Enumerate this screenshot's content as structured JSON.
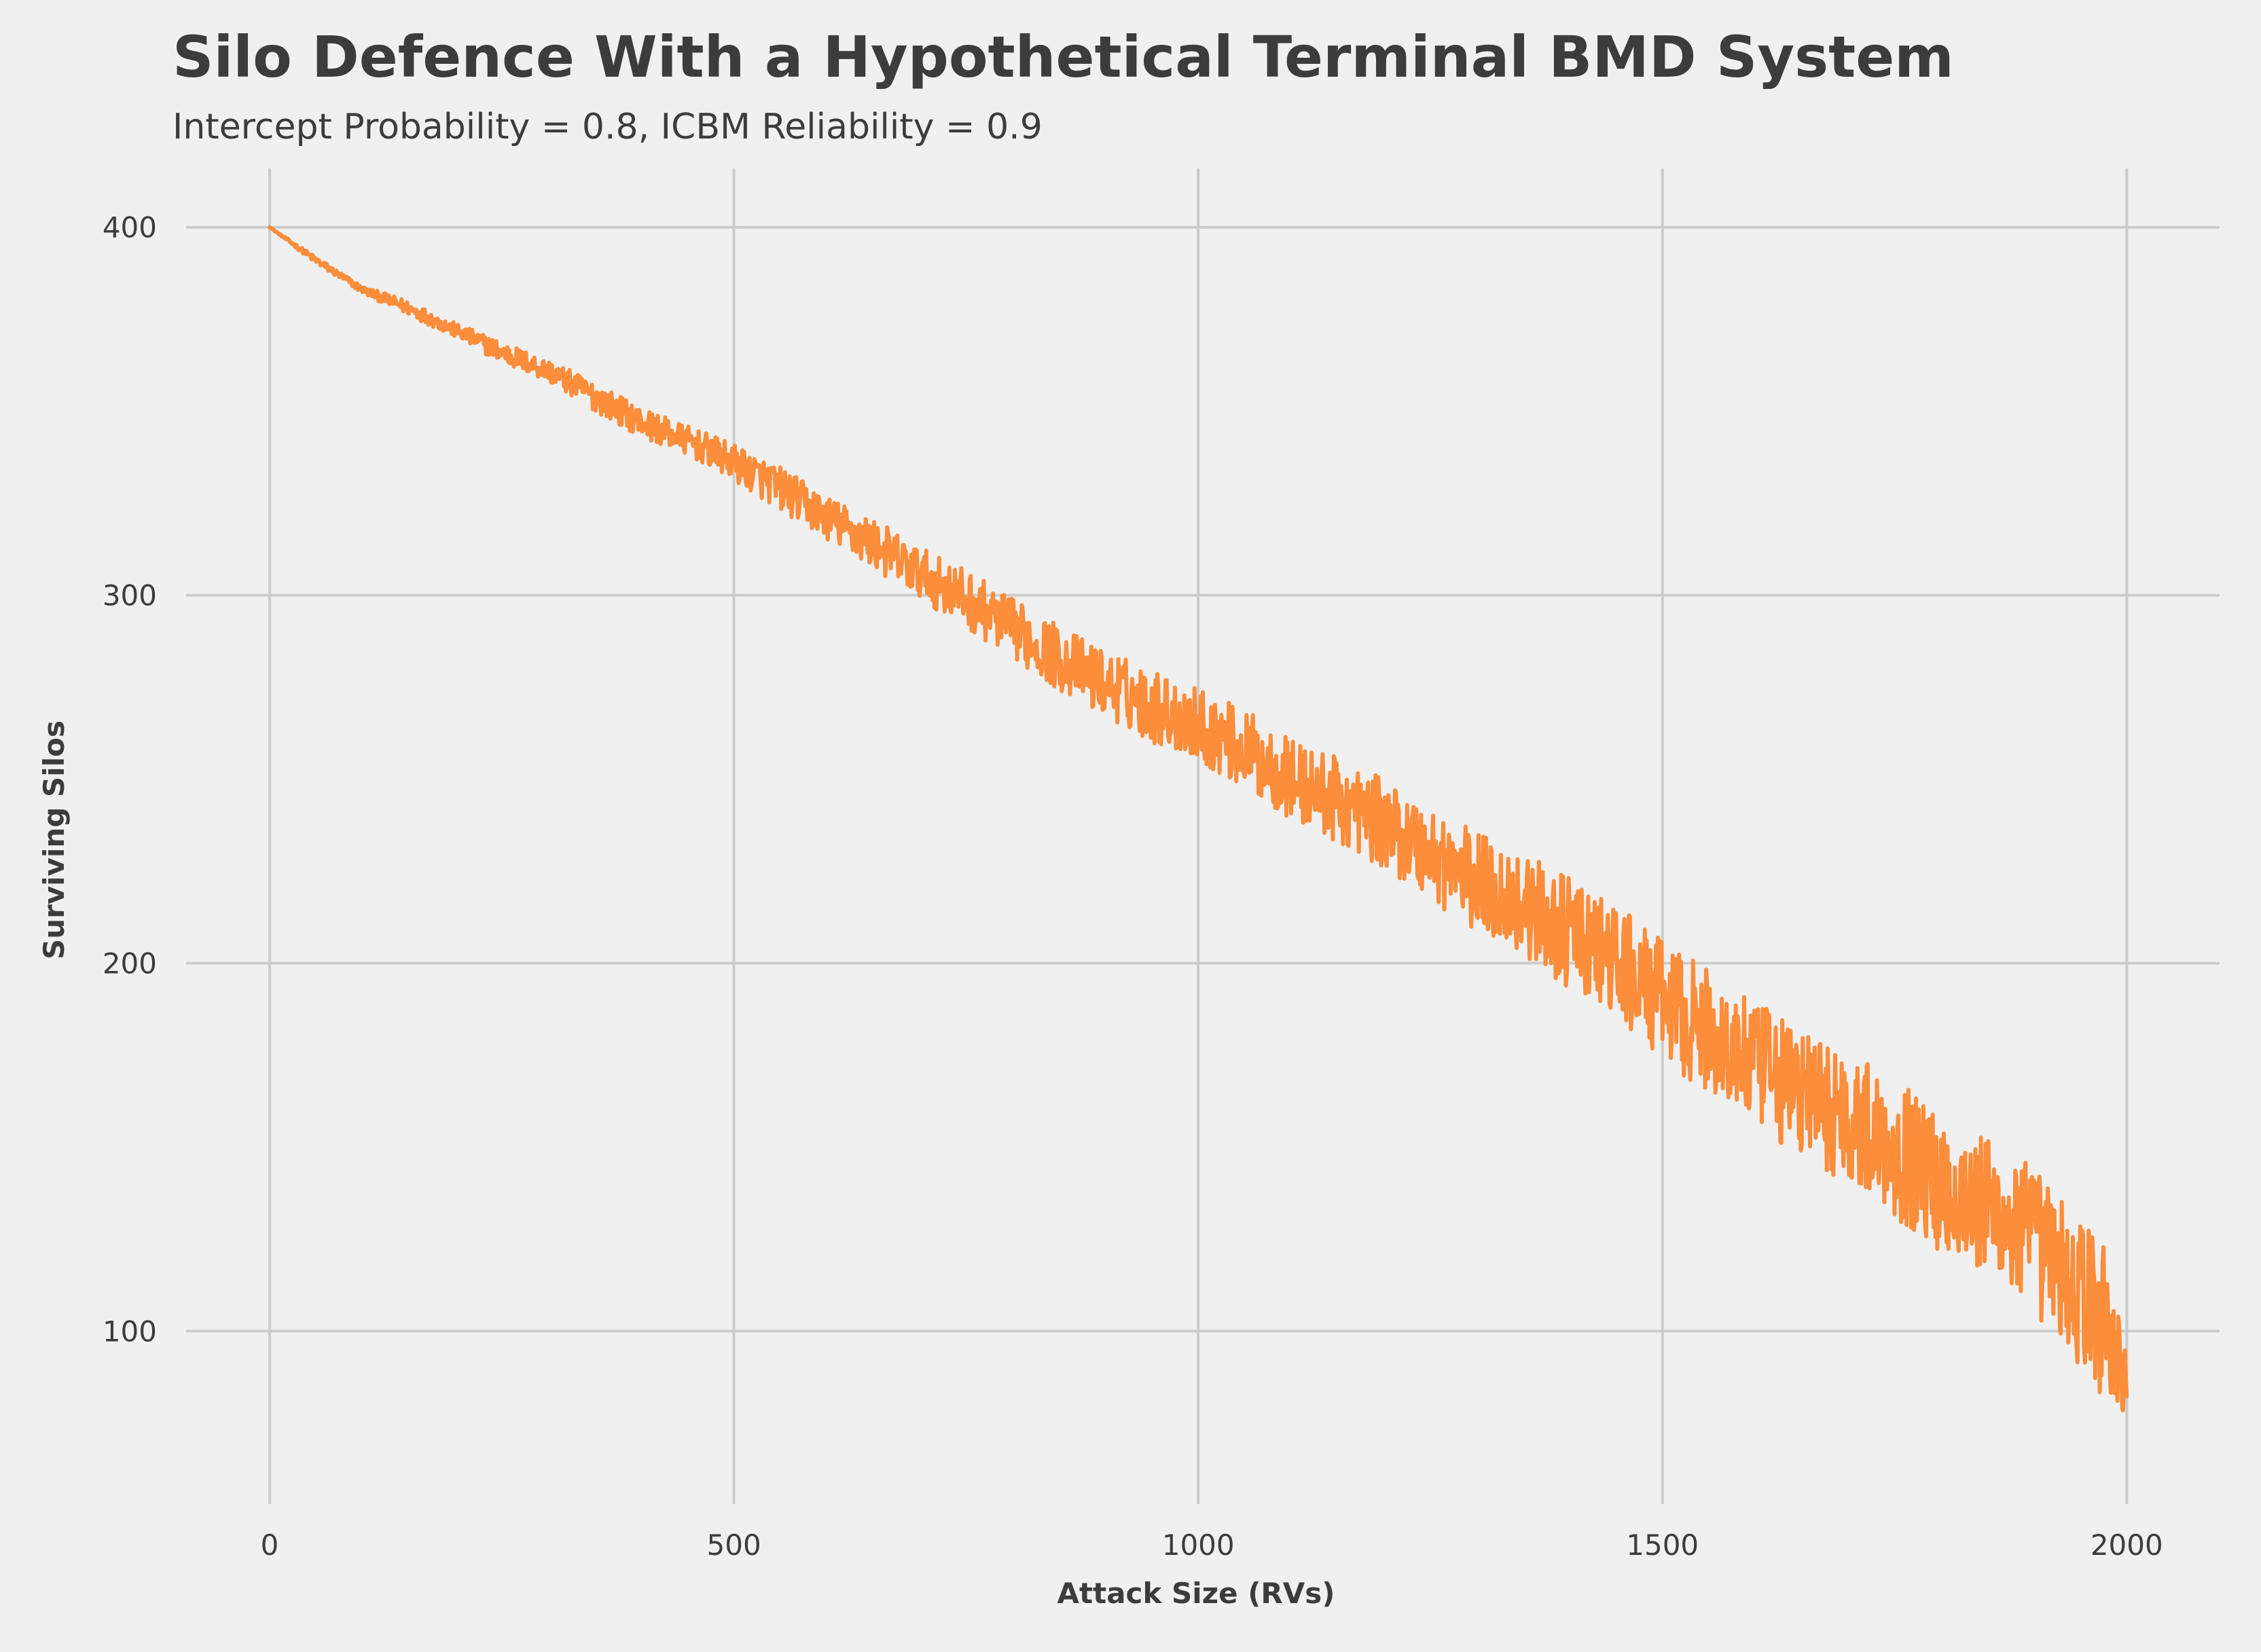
{
  "chart_data": {
    "type": "line",
    "title": "Silo Defence With a Hypothetical Terminal BMD System",
    "subtitle": "Intercept Probability = 0.8, ICBM Reliability = 0.9",
    "xlabel": "Attack Size (RVs)",
    "ylabel": "Surviving Silos",
    "xlim": [
      -90,
      2100
    ],
    "ylim": [
      53,
      416
    ],
    "xticks": [
      0,
      500,
      1000,
      1500,
      2000
    ],
    "yticks": [
      100,
      200,
      300,
      400
    ],
    "grid": true,
    "series": [
      {
        "color": "#fc8d3a",
        "x": [
          0,
          50,
          100,
          150,
          200,
          250,
          300,
          350,
          400,
          450,
          500,
          550,
          600,
          650,
          700,
          750,
          800,
          850,
          900,
          950,
          1000,
          1050,
          1100,
          1150,
          1200,
          1250,
          1300,
          1350,
          1400,
          1450,
          1500,
          1550,
          1600,
          1650,
          1700,
          1750,
          1800,
          1850,
          1900,
          1950,
          1980,
          2000
        ],
        "y": [
          400,
          391,
          383,
          378,
          372,
          366,
          361,
          354,
          347,
          342,
          336,
          329,
          321,
          314,
          306,
          299,
          291,
          283,
          276,
          270,
          265,
          258,
          250,
          244,
          238,
          230,
          222,
          216,
          208,
          200,
          190,
          181,
          172,
          165,
          158,
          150,
          140,
          133,
          125,
          110,
          102,
          85
        ],
        "noise_amplitude": [
          0,
          1,
          1,
          2,
          2,
          3,
          3,
          4,
          4,
          4,
          5,
          6,
          6,
          7,
          7,
          8,
          8,
          9,
          9,
          10,
          10,
          11,
          11,
          12,
          12,
          13,
          14,
          14,
          15,
          16,
          16,
          17,
          17,
          18,
          18,
          19,
          19,
          20,
          20,
          21,
          22,
          14
        ]
      }
    ]
  }
}
